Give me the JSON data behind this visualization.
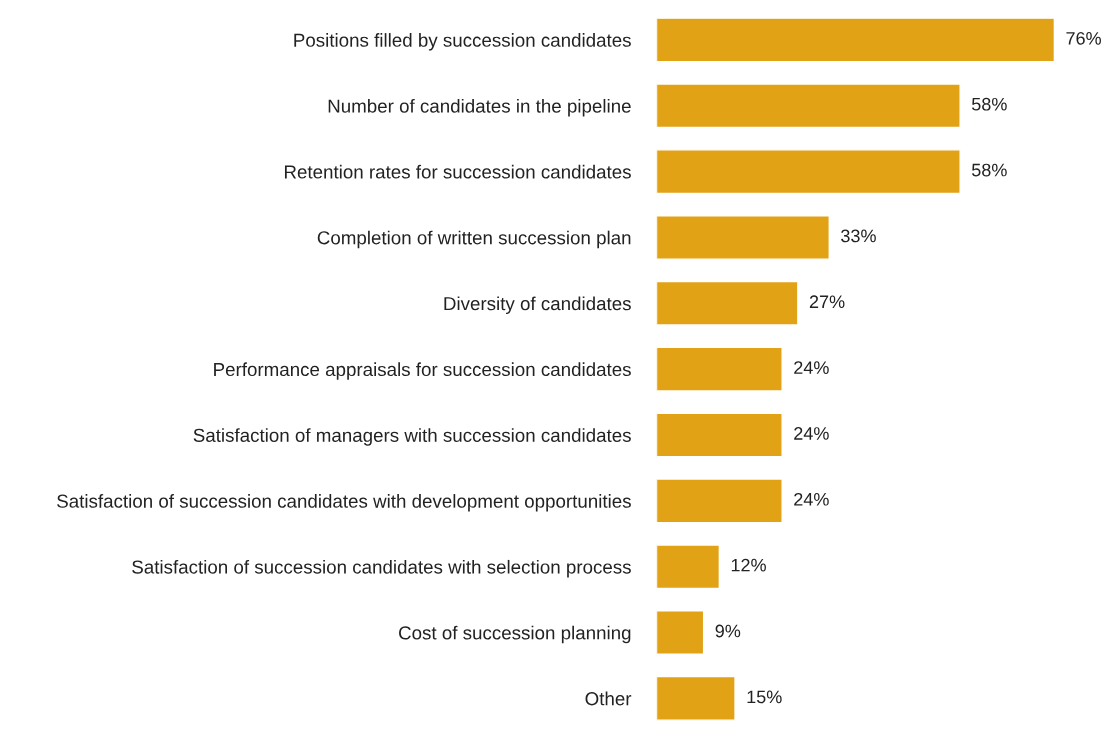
{
  "chart_data": {
    "type": "bar",
    "orientation": "horizontal",
    "categories": [
      "Positions filled by succession candidates",
      "Number of candidates in the pipeline",
      "Retention rates for succession candidates",
      "Completion of written succession plan",
      "Diversity of candidates",
      "Performance appraisals for succession candidates",
      "Satisfaction of managers with succession candidates",
      "Satisfaction of succession candidates with development opportunities",
      "Satisfaction of succession candidates with selection process",
      "Cost of succession planning",
      "Other"
    ],
    "values": [
      76,
      58,
      58,
      33,
      27,
      24,
      24,
      24,
      12,
      9,
      15
    ],
    "value_labels": [
      "76%",
      "58%",
      "58%",
      "33%",
      "27%",
      "24%",
      "24%",
      "24%",
      "12%",
      "9%",
      "15%"
    ],
    "color": "#e2a215",
    "grid": false,
    "legend": false,
    "tick_labels": "y"
  }
}
